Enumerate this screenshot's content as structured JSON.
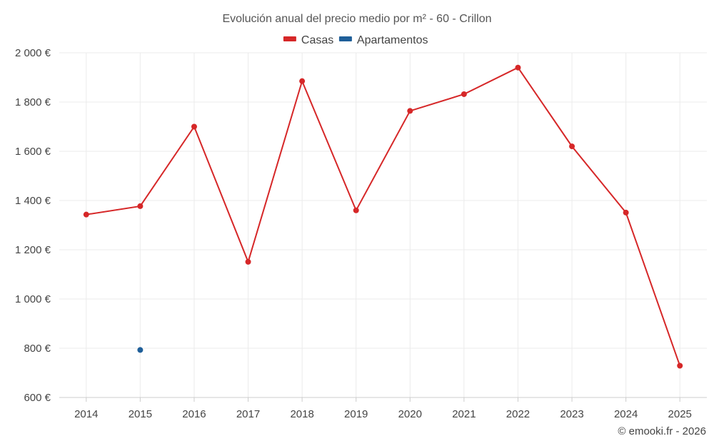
{
  "chart_data": {
    "type": "line",
    "title": "Evolución anual del precio medio por m² - 60 - Crillon",
    "categories": [
      "2014",
      "2015",
      "2016",
      "2017",
      "2018",
      "2019",
      "2020",
      "2021",
      "2022",
      "2023",
      "2024",
      "2025"
    ],
    "series": [
      {
        "name": "Casas",
        "color": "#d62728",
        "values": [
          1343,
          1377,
          1700,
          1151,
          1885,
          1360,
          1764,
          1832,
          1940,
          1620,
          1351,
          729
        ]
      },
      {
        "name": "Apartamentos",
        "color": "#1f5f99",
        "values": [
          null,
          793,
          null,
          null,
          null,
          null,
          null,
          null,
          null,
          null,
          null,
          null
        ]
      }
    ],
    "ylim": [
      600,
      2000
    ],
    "yticks": [
      600,
      800,
      1000,
      1200,
      1400,
      1600,
      1800,
      2000
    ],
    "ytick_labels": [
      "600 €",
      "800 €",
      "1 000 €",
      "1 200 €",
      "1 400 €",
      "1 600 €",
      "1 800 €",
      "2 000 €"
    ],
    "xlabel": "",
    "ylabel": "",
    "legend_position": "top-center",
    "grid": true
  },
  "credit": "© emooki.fr - 2026"
}
